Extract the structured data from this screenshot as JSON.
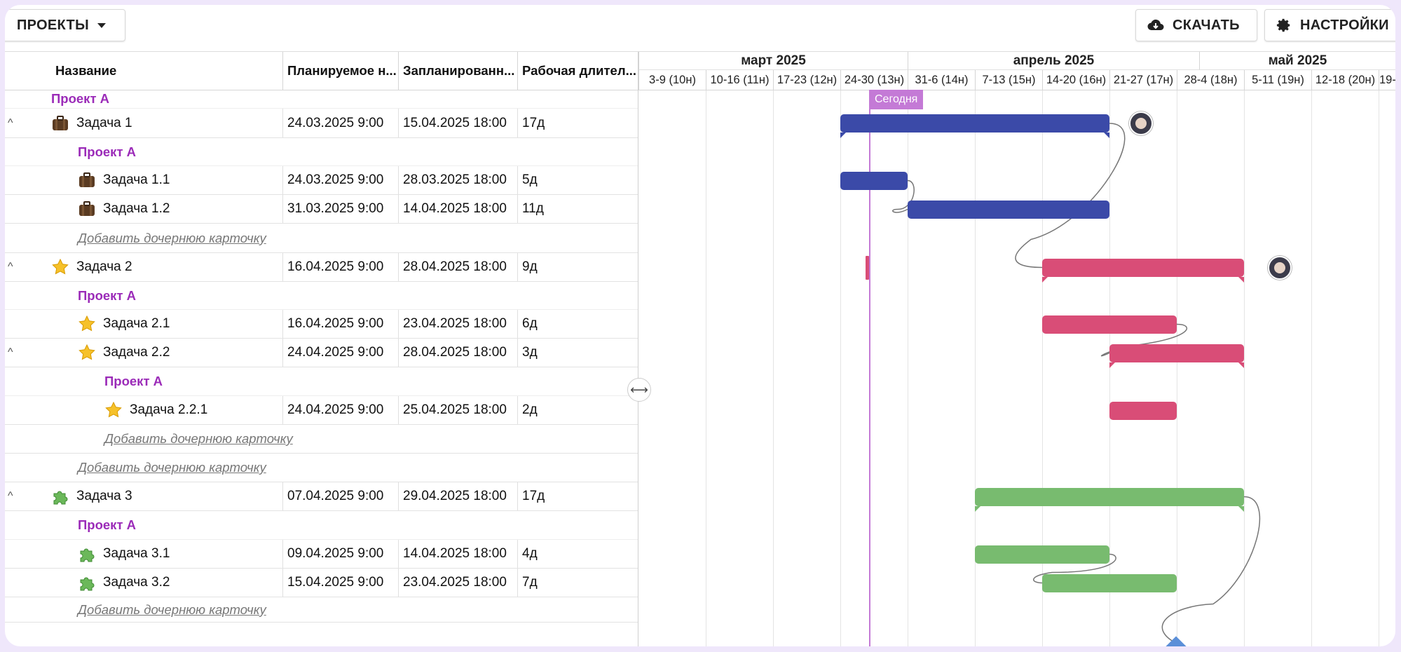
{
  "toolbar": {
    "projects_label": "ПРОЕКТЫ",
    "download_label": "СКАЧАТЬ",
    "settings_label": "НАСТРОЙКИ"
  },
  "columns": [
    "Название",
    "Планируемое н...",
    "Запланированн...",
    "Рабочая длител..."
  ],
  "rows": [
    {
      "kind": "project",
      "label": "Проект А",
      "indent": 0
    },
    {
      "kind": "task",
      "name": "Задача 1",
      "icon": "briefcase-icon",
      "start": "24.03.2025 9:00",
      "end": "15.04.2025 18:00",
      "dur": "17д",
      "indent": 0,
      "collapsible": true
    },
    {
      "kind": "project",
      "label": "Проект А",
      "indent": 1
    },
    {
      "kind": "task",
      "name": "Задача 1.1",
      "icon": "briefcase-icon",
      "start": "24.03.2025 9:00",
      "end": "28.03.2025 18:00",
      "dur": "5д",
      "indent": 1
    },
    {
      "kind": "task",
      "name": "Задача 1.2",
      "icon": "briefcase-icon",
      "start": "31.03.2025 9:00",
      "end": "14.04.2025 18:00",
      "dur": "11д",
      "indent": 1
    },
    {
      "kind": "add",
      "label": "Добавить дочернюю карточку",
      "indent": 1
    },
    {
      "kind": "task",
      "name": "Задача 2",
      "icon": "star-icon",
      "start": "16.04.2025 9:00",
      "end": "28.04.2025 18:00",
      "dur": "9д",
      "indent": 0,
      "collapsible": true
    },
    {
      "kind": "project",
      "label": "Проект А",
      "indent": 1
    },
    {
      "kind": "task",
      "name": "Задача 2.1",
      "icon": "star-icon",
      "start": "16.04.2025 9:00",
      "end": "23.04.2025 18:00",
      "dur": "6д",
      "indent": 1
    },
    {
      "kind": "task",
      "name": "Задача 2.2",
      "icon": "star-icon",
      "start": "24.04.2025 9:00",
      "end": "28.04.2025 18:00",
      "dur": "3д",
      "indent": 1,
      "collapsible": true
    },
    {
      "kind": "project",
      "label": "Проект А",
      "indent": 2
    },
    {
      "kind": "task",
      "name": "Задача 2.2.1",
      "icon": "star-icon",
      "start": "24.04.2025 9:00",
      "end": "25.04.2025 18:00",
      "dur": "2д",
      "indent": 2
    },
    {
      "kind": "add",
      "label": "Добавить дочернюю карточку",
      "indent": 2
    },
    {
      "kind": "add",
      "label": "Добавить дочернюю карточку",
      "indent": 1
    },
    {
      "kind": "task",
      "name": "Задача 3",
      "icon": "puzzle-icon",
      "start": "07.04.2025 9:00",
      "end": "29.04.2025 18:00",
      "dur": "17д",
      "indent": 0,
      "collapsible": true
    },
    {
      "kind": "project",
      "label": "Проект А",
      "indent": 1
    },
    {
      "kind": "task",
      "name": "Задача 3.1",
      "icon": "puzzle-icon",
      "start": "09.04.2025 9:00",
      "end": "14.04.2025 18:00",
      "dur": "4д",
      "indent": 1
    },
    {
      "kind": "task",
      "name": "Задача 3.2",
      "icon": "puzzle-icon",
      "start": "15.04.2025 9:00",
      "end": "23.04.2025 18:00",
      "dur": "7д",
      "indent": 1
    },
    {
      "kind": "add",
      "label": "Добавить дочернюю карточку",
      "indent": 1
    }
  ],
  "timeline": {
    "months": [
      "март 2025",
      "апрель 2025",
      "май 2025"
    ],
    "weeks": [
      "3-9 (10н)",
      "10-16 (11н)",
      "17-23 (12н)",
      "24-30 (13н)",
      "31-6 (14н)",
      "7-13 (15н)",
      "14-20 (16н)",
      "21-27 (17н)",
      "28-4 (18н)",
      "5-11 (19н)",
      "12-18 (20н)",
      "19-"
    ],
    "today_label": "Сегодня"
  },
  "colors": {
    "blue": "#3b4aa8",
    "pink": "#d94d77",
    "green": "#78bb6f",
    "accent": "#9b2bb8",
    "today": "#c47ad6"
  }
}
